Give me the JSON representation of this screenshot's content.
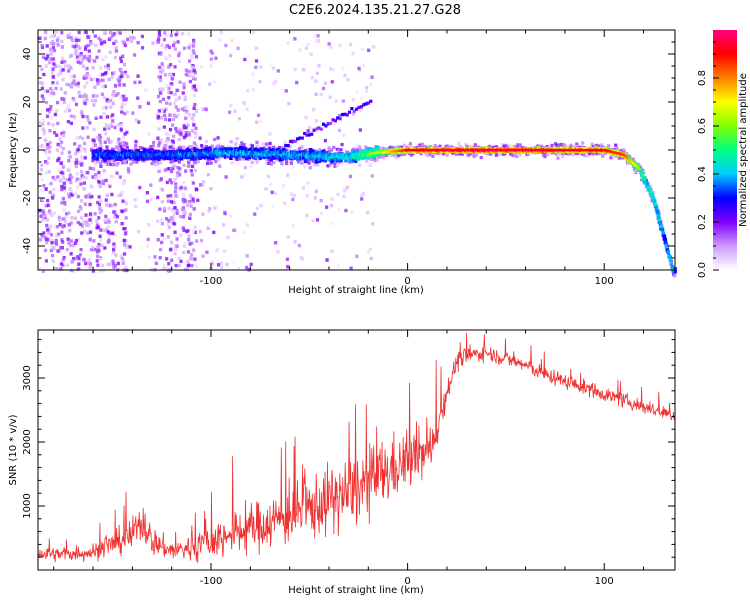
{
  "title": "C2E6.2024.135.21.27.G28",
  "colors": {
    "snr_line": "#f03030",
    "axes": "#000000",
    "background": "#ffffff"
  },
  "chart_data": [
    {
      "type": "heatmap",
      "xlabel": "Height of straight line (km)",
      "ylabel": "Frequency (Hz)",
      "xlim": [
        -188,
        136
      ],
      "ylim": [
        -50,
        50
      ],
      "xticks": [
        -100,
        0,
        100
      ],
      "yticks": [
        -40,
        -20,
        0,
        20,
        40
      ],
      "ticks_show_zero_as": "0",
      "colorbar": {
        "label": "Normalized spectral amplitude",
        "range": [
          0.0,
          1.0
        ],
        "ticks": [
          0.0,
          0.2,
          0.4,
          0.6,
          0.8
        ],
        "colormap": [
          "#ffffff",
          "#cc99ff",
          "#8000ff",
          "#0000ff",
          "#00ccff",
          "#00ff80",
          "#80ff00",
          "#ffff00",
          "#ff8000",
          "#ff0000",
          "#ff0080"
        ]
      },
      "ridge": [
        {
          "height_km": -155,
          "freq_hz": -2,
          "amplitude": 0.35
        },
        {
          "height_km": -120,
          "freq_hz": -2,
          "amplitude": 0.35
        },
        {
          "height_km": -90,
          "freq_hz": -1,
          "amplitude": 0.4
        },
        {
          "height_km": -60,
          "freq_hz": -2,
          "amplitude": 0.4
        },
        {
          "height_km": -30,
          "freq_hz": -3,
          "amplitude": 0.45
        },
        {
          "height_km": -15,
          "freq_hz": -1,
          "amplitude": 0.6
        },
        {
          "height_km": 0,
          "freq_hz": 0,
          "amplitude": 0.85
        },
        {
          "height_km": 20,
          "freq_hz": 0,
          "amplitude": 0.9
        },
        {
          "height_km": 60,
          "freq_hz": 0,
          "amplitude": 0.9
        },
        {
          "height_km": 100,
          "freq_hz": 0,
          "amplitude": 0.85
        },
        {
          "height_km": 110,
          "freq_hz": -2,
          "amplitude": 0.8
        },
        {
          "height_km": 118,
          "freq_hz": -8,
          "amplitude": 0.55
        },
        {
          "height_km": 125,
          "freq_hz": -20,
          "amplitude": 0.45
        },
        {
          "height_km": 130,
          "freq_hz": -35,
          "amplitude": 0.4
        },
        {
          "height_km": 135,
          "freq_hz": -50,
          "amplitude": 0.4
        }
      ]
    },
    {
      "type": "line",
      "xlabel": "Height of straight line (km)",
      "ylabel": "SNR (10 * v/v)",
      "xlim": [
        -188,
        136
      ],
      "ylim": [
        0,
        3750
      ],
      "xticks": [
        -100,
        0,
        100
      ],
      "yticks": [
        1000,
        2000,
        3000
      ],
      "series": [
        {
          "x": [
            -188,
            -175,
            -160,
            -150,
            -140,
            -135,
            -130,
            -120,
            -110,
            -100,
            -90,
            -80,
            -70,
            -60,
            -50,
            -40,
            -30,
            -20,
            -10,
            0,
            5,
            10,
            15,
            20,
            25,
            30,
            40,
            50,
            60,
            70,
            80,
            90,
            100,
            110,
            120,
            130,
            136
          ],
          "y": [
            250,
            250,
            280,
            400,
            550,
            800,
            450,
            300,
            350,
            450,
            550,
            650,
            750,
            850,
            950,
            1100,
            1200,
            1350,
            1550,
            1700,
            1800,
            1800,
            2200,
            2800,
            3250,
            3350,
            3400,
            3300,
            3200,
            3050,
            2950,
            2850,
            2750,
            2650,
            2550,
            2450,
            2400
          ],
          "noise": [
            150,
            150,
            180,
            250,
            350,
            450,
            300,
            200,
            300,
            400,
            450,
            500,
            550,
            600,
            650,
            700,
            750,
            750,
            700,
            600,
            550,
            500,
            400,
            250,
            200,
            180,
            160,
            160,
            160,
            160,
            150,
            150,
            150,
            150,
            140,
            140,
            140
          ]
        }
      ]
    }
  ]
}
